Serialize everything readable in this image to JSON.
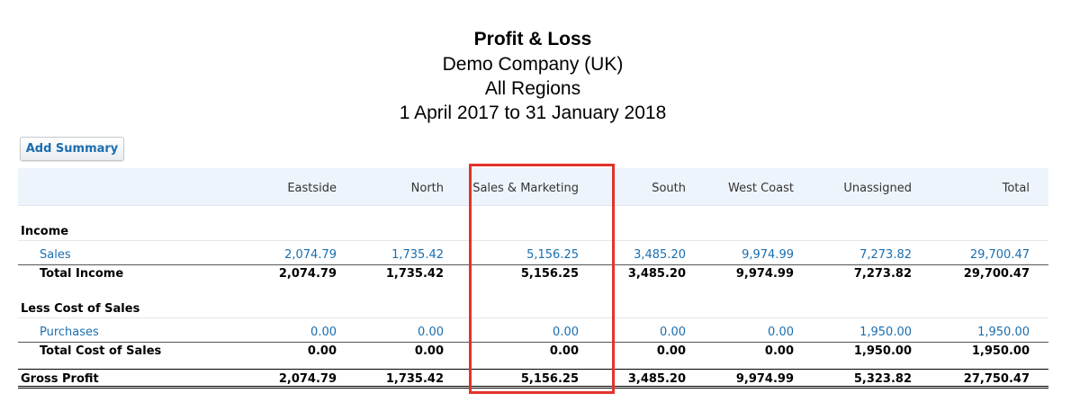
{
  "report": {
    "title": "Profit & Loss",
    "company": "Demo Company (UK)",
    "region": "All Regions",
    "period": "1 April 2017 to 31 January 2018"
  },
  "toolbar": {
    "add_summary_label": "Add Summary"
  },
  "columns": [
    "Eastside",
    "North",
    "Sales & Marketing",
    "South",
    "West Coast",
    "Unassigned",
    "Total"
  ],
  "income": {
    "heading": "Income",
    "sales": {
      "label": "Sales",
      "values": [
        "2,074.79",
        "1,735.42",
        "5,156.25",
        "3,485.20",
        "9,974.99",
        "7,273.82",
        "29,700.47"
      ]
    },
    "total": {
      "label": "Total Income",
      "values": [
        "2,074.79",
        "1,735.42",
        "5,156.25",
        "3,485.20",
        "9,974.99",
        "7,273.82",
        "29,700.47"
      ]
    }
  },
  "cost_of_sales": {
    "heading": "Less Cost of Sales",
    "purchases": {
      "label": "Purchases",
      "values": [
        "0.00",
        "0.00",
        "0.00",
        "0.00",
        "0.00",
        "1,950.00",
        "1,950.00"
      ]
    },
    "total": {
      "label": "Total Cost of Sales",
      "values": [
        "0.00",
        "0.00",
        "0.00",
        "0.00",
        "0.00",
        "1,950.00",
        "1,950.00"
      ]
    }
  },
  "gross_profit": {
    "label": "Gross Profit",
    "values": [
      "2,074.79",
      "1,735.42",
      "5,156.25",
      "3,485.20",
      "9,974.99",
      "5,323.82",
      "27,750.47"
    ]
  },
  "highlight": {
    "color": "#e2332b",
    "column": "Sales & Marketing"
  }
}
